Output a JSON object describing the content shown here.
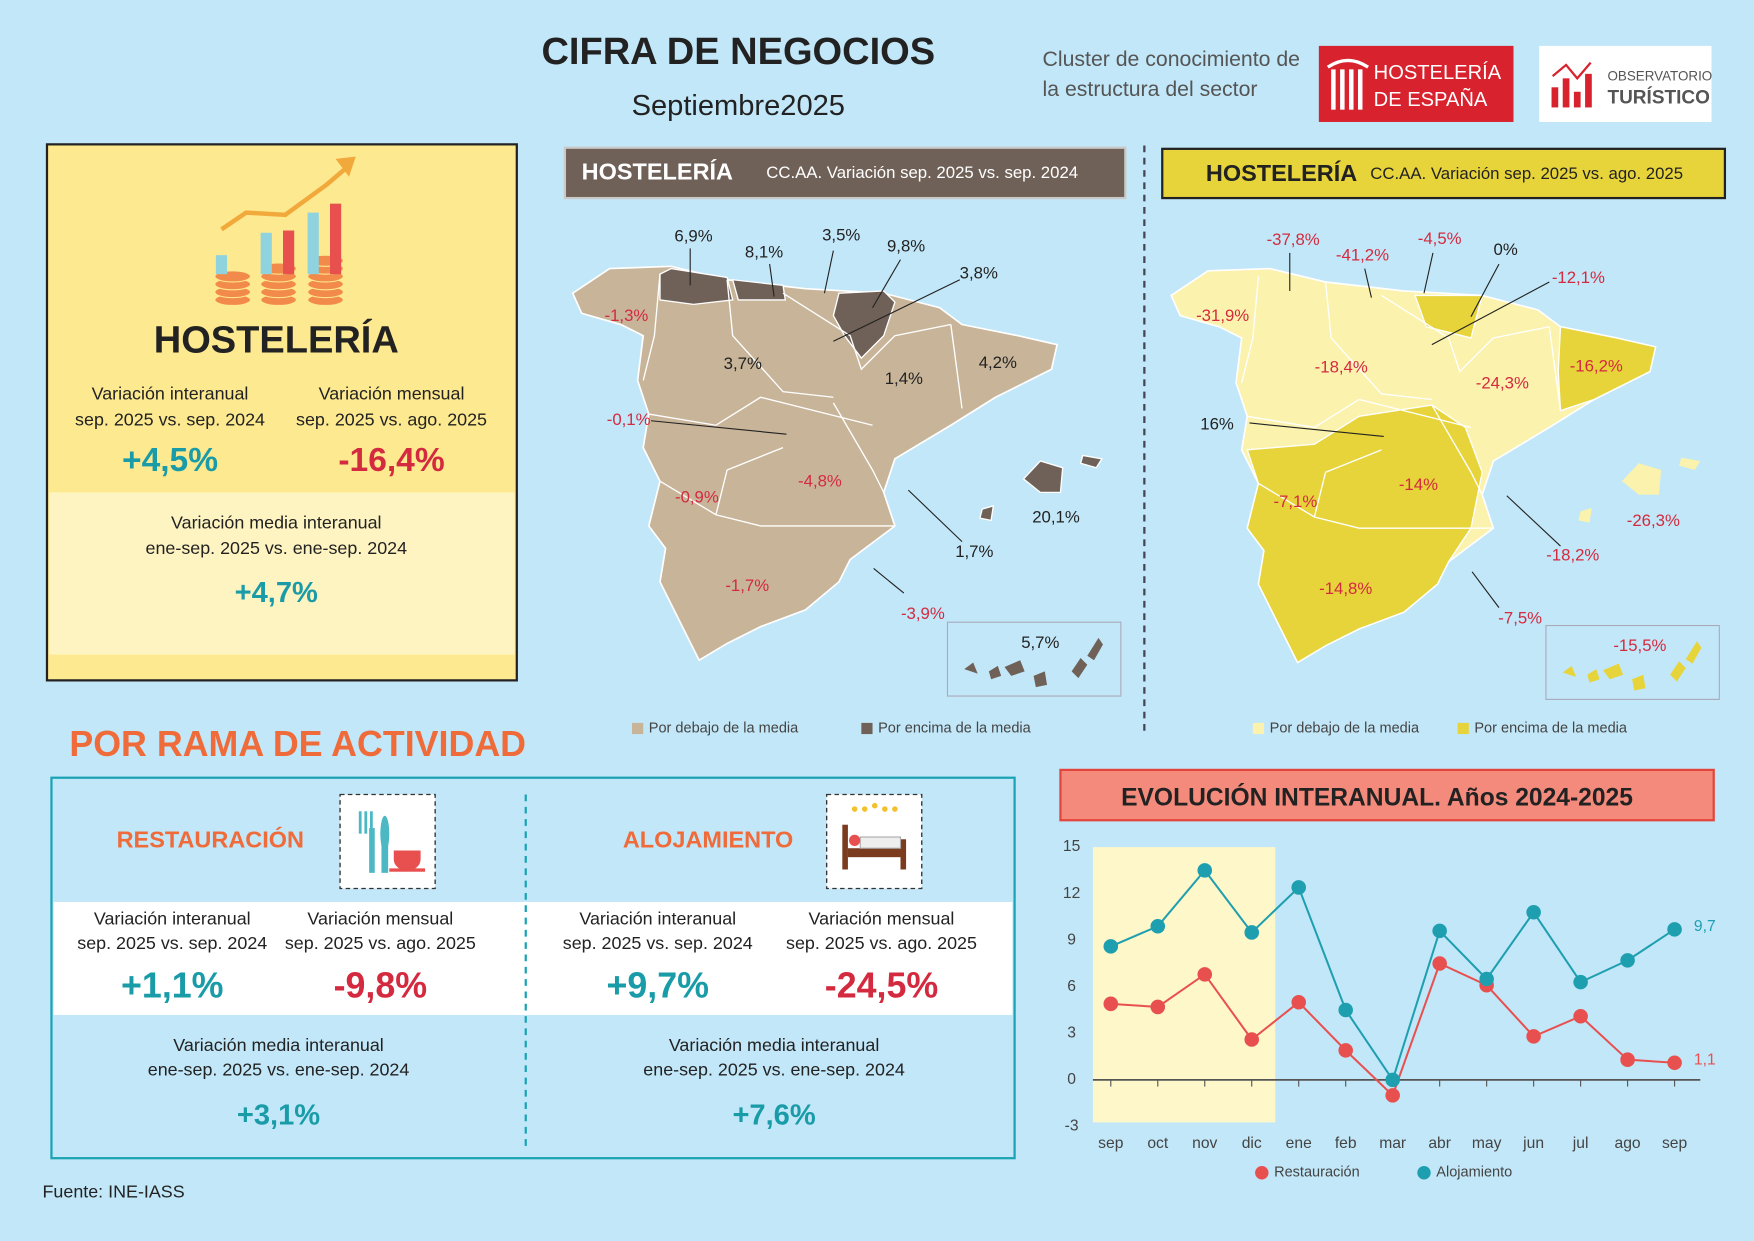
{
  "header": {
    "title": "CIFRA DE NEGOCIOS",
    "subtitle": "Septiembre2025",
    "cluster": [
      "Cluster de conocimiento de",
      "la estructura del sector"
    ],
    "logos": [
      {
        "lines": [
          "HOSTELERÍA",
          "DE ESPAÑA"
        ]
      },
      {
        "lines": [
          "OBSERVATORIO",
          "TURÍSTICO"
        ]
      }
    ]
  },
  "summary": {
    "title": "HOSTELERÍA",
    "stats": [
      {
        "label": [
          "Variación interanual",
          "sep. 2025 vs. sep. 2024"
        ],
        "value": "+4,5%"
      },
      {
        "label": [
          "Variación mensual",
          "sep. 2025 vs. ago. 2025"
        ],
        "value": "-16,4%"
      },
      {
        "label": [
          "Variación media interanual",
          "ene-sep. 2025 vs. ene-sep. 2024"
        ],
        "value": "+4,7%"
      }
    ]
  },
  "maps": [
    {
      "title": "HOSTELERÍA",
      "subtitle": "CC.AA. Variación sep. 2025 vs. sep. 2024",
      "labels": [
        "6,9%",
        "8,1%",
        "3,5%",
        "9,8%",
        "3,8%",
        "-1,3%",
        "3,7%",
        "1,4%",
        "4,2%",
        "-0,1%",
        "-0,9%",
        "-4,8%",
        "20,1%",
        "1,7%",
        "-1,7%",
        "-3,9%",
        "5,7%"
      ],
      "legend": [
        "Por debajo de la media",
        "Por encima de la media"
      ]
    },
    {
      "title": "HOSTELERÍA",
      "subtitle": "CC.AA. Variación sep. 2025 vs. ago. 2025",
      "labels": [
        "-37,8%",
        "-41,2%",
        "-4,5%",
        "0%",
        "-12,1%",
        "-31,9%",
        "-18,4%",
        "-24,3%",
        "-16,2%",
        "16%",
        "-7,1%",
        "-14%",
        "-26,3%",
        "-18,2%",
        "-14,8%",
        "-7,5%",
        "-15,5%"
      ],
      "legend": [
        "Por debajo de la media",
        "Por encima de la media"
      ]
    }
  ],
  "activity": {
    "title": "POR RAMA DE ACTIVIDAD",
    "branches": [
      {
        "name": "RESTAURACIÓN",
        "stats": [
          {
            "label": [
              "Variación interanual",
              "sep. 2025 vs. sep. 2024"
            ],
            "value": "+1,1%"
          },
          {
            "label": [
              "Variación mensual",
              "sep. 2025 vs. ago. 2025"
            ],
            "value": "-9,8%"
          },
          {
            "label": [
              "Variación media interanual",
              "ene-sep. 2025 vs. ene-sep. 2024"
            ],
            "value": "+3,1%"
          }
        ]
      },
      {
        "name": "ALOJAMIENTO",
        "stats": [
          {
            "label": [
              "Variación interanual",
              "sep. 2025 vs. sep. 2024"
            ],
            "value": "+9,7%"
          },
          {
            "label": [
              "Variación mensual",
              "sep. 2025 vs. ago. 2025"
            ],
            "value": "-24,5%"
          },
          {
            "label": [
              "Variación media interanual",
              "ene-sep. 2025 vs. ene-sep. 2024"
            ],
            "value": "+7,6%"
          }
        ]
      }
    ]
  },
  "chart_data": {
    "type": "line",
    "title": "EVOLUCIÓN INTERANUAL. Años 2024-2025",
    "categories": [
      "sep",
      "oct",
      "nov",
      "dic",
      "ene",
      "feb",
      "mar",
      "abr",
      "may",
      "jun",
      "jul",
      "ago",
      "sep"
    ],
    "series": [
      {
        "name": "Restauración",
        "color": "#e8504f",
        "values": [
          4.9,
          4.7,
          6.8,
          2.6,
          5.0,
          1.9,
          -1.0,
          7.5,
          6.1,
          2.8,
          4.1,
          1.3,
          1.1
        ],
        "value_labels": [
          null,
          null,
          null,
          null,
          null,
          null,
          null,
          null,
          null,
          null,
          null,
          null,
          "1,1"
        ]
      },
      {
        "name": "Alojamiento",
        "color": "#1e9fb0",
        "values": [
          8.6,
          9.9,
          13.5,
          9.5,
          12.4,
          4.5,
          0.0,
          9.6,
          6.5,
          10.8,
          6.3,
          7.7,
          9.7
        ],
        "value_labels": [
          null,
          null,
          null,
          null,
          null,
          null,
          null,
          null,
          null,
          null,
          null,
          null,
          "9,7"
        ]
      }
    ],
    "ylim": [
      -3,
      15
    ],
    "yticks": [
      -3,
      0,
      3,
      6,
      9,
      12,
      15
    ],
    "grid": false
  },
  "source": "Fuente: INE-IASS"
}
